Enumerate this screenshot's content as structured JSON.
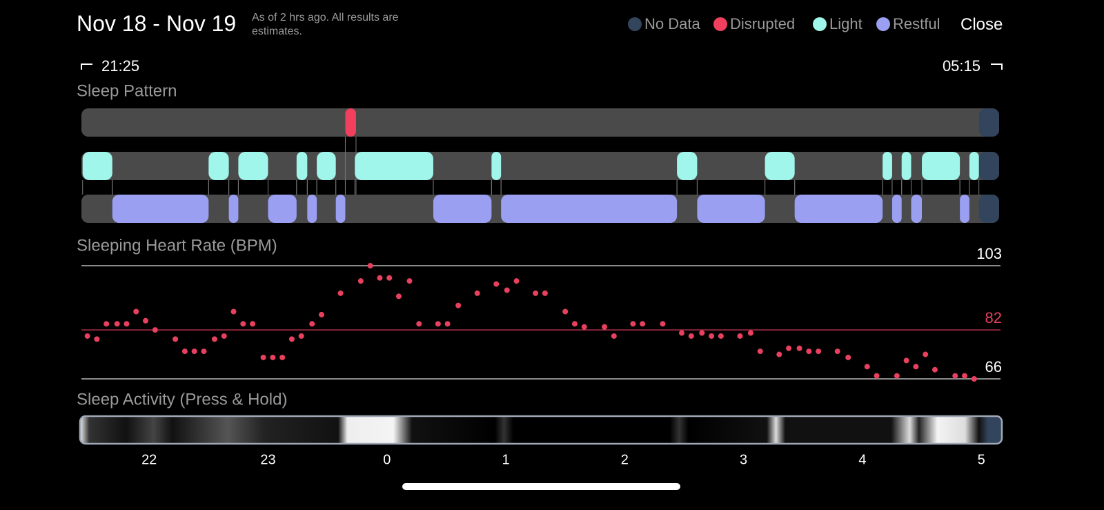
{
  "header": {
    "title": "Nov 18 - Nov 19",
    "subtitle": "As of 2 hrs ago. All results are estimates.",
    "close": "Close"
  },
  "chart_data": [
    {
      "type": "timeline",
      "title": "Sleep Pattern",
      "start_label": "21:25",
      "end_label": "05:15",
      "xlim": [
        21.43,
        29.15
      ],
      "series": [
        {
          "name": "No Data",
          "color": "#33455c",
          "segments": [
            [
              28.98,
              29.15
            ]
          ]
        },
        {
          "name": "Disrupted",
          "color": "#f0405e",
          "segments": [
            [
              23.65,
              23.74
            ]
          ]
        },
        {
          "name": "Light",
          "color": "#a0f6ea",
          "segments": [
            [
              21.44,
              21.69
            ],
            [
              22.5,
              22.67
            ],
            [
              22.75,
              23.0
            ],
            [
              23.24,
              23.33
            ],
            [
              23.41,
              23.57
            ],
            [
              23.73,
              24.39
            ],
            [
              24.88,
              24.96
            ],
            [
              26.44,
              26.61
            ],
            [
              27.18,
              27.43
            ],
            [
              28.17,
              28.25
            ],
            [
              28.33,
              28.41
            ],
            [
              28.5,
              28.82
            ],
            [
              28.9,
              28.98
            ]
          ]
        },
        {
          "name": "Restful",
          "color": "#9a9ff2",
          "segments": [
            [
              21.69,
              22.5
            ],
            [
              22.67,
              22.75
            ],
            [
              23.0,
              23.24
            ],
            [
              23.33,
              23.41
            ],
            [
              23.57,
              23.65
            ],
            [
              24.39,
              24.88
            ],
            [
              24.96,
              26.44
            ],
            [
              26.61,
              27.18
            ],
            [
              27.43,
              28.17
            ],
            [
              28.25,
              28.33
            ],
            [
              28.41,
              28.5
            ],
            [
              28.82,
              28.9
            ]
          ]
        }
      ]
    },
    {
      "type": "scatter",
      "title": "Sleeping Heart Rate (BPM)",
      "color": "#e8405f",
      "xlim": [
        21.43,
        29.15
      ],
      "ylim": [
        66,
        103
      ],
      "yticks": [
        103,
        82,
        66
      ],
      "ytick_colors": [
        "#ffffff",
        "#e8405f",
        "#ffffff"
      ],
      "x": [
        21.48,
        21.56,
        21.64,
        21.73,
        21.81,
        21.89,
        21.97,
        22.05,
        22.22,
        22.3,
        22.38,
        22.46,
        22.55,
        22.63,
        22.71,
        22.79,
        22.87,
        22.96,
        23.04,
        23.12,
        23.2,
        23.28,
        23.37,
        23.45,
        23.61,
        23.78,
        23.86,
        23.94,
        24.02,
        24.1,
        24.19,
        24.27,
        24.43,
        24.51,
        24.6,
        24.76,
        24.92,
        25.01,
        25.09,
        25.25,
        25.33,
        25.5,
        25.58,
        25.66,
        25.83,
        25.91,
        26.07,
        26.15,
        26.32,
        26.48,
        26.56,
        26.65,
        26.73,
        26.81,
        26.97,
        27.06,
        27.14,
        27.3,
        27.38,
        27.47,
        27.55,
        27.63,
        27.79,
        27.88,
        28.04,
        28.12,
        28.29,
        28.37,
        28.45,
        28.53,
        28.61,
        28.78,
        28.86,
        28.94
      ],
      "values": [
        80,
        79,
        84,
        84,
        84,
        88,
        85,
        82,
        79,
        75,
        75,
        75,
        79,
        80,
        88,
        84,
        84,
        73,
        73,
        73,
        79,
        80,
        84,
        87,
        94,
        98,
        103,
        99,
        99,
        93,
        98,
        84,
        84,
        84,
        90,
        94,
        97,
        95,
        98,
        94,
        94,
        88,
        84,
        83,
        83,
        80,
        84,
        84,
        84,
        81,
        80,
        81,
        80,
        80,
        80,
        81,
        75,
        74,
        76,
        76,
        75,
        75,
        75,
        73,
        70,
        67,
        67,
        72,
        70,
        74,
        69,
        67,
        67,
        66
      ]
    },
    {
      "type": "activity-strip",
      "title": "Sleep Activity (Press & Hold)",
      "xlim": [
        21.43,
        29.15
      ],
      "xticks": [
        22,
        23,
        {
          "value": 24,
          "label": "0"
        },
        {
          "value": 25,
          "label": "1"
        },
        {
          "value": 26,
          "label": "2"
        },
        {
          "value": 27,
          "label": "3"
        },
        {
          "value": 28,
          "label": "4"
        },
        {
          "value": 29,
          "label": "5"
        }
      ]
    }
  ]
}
